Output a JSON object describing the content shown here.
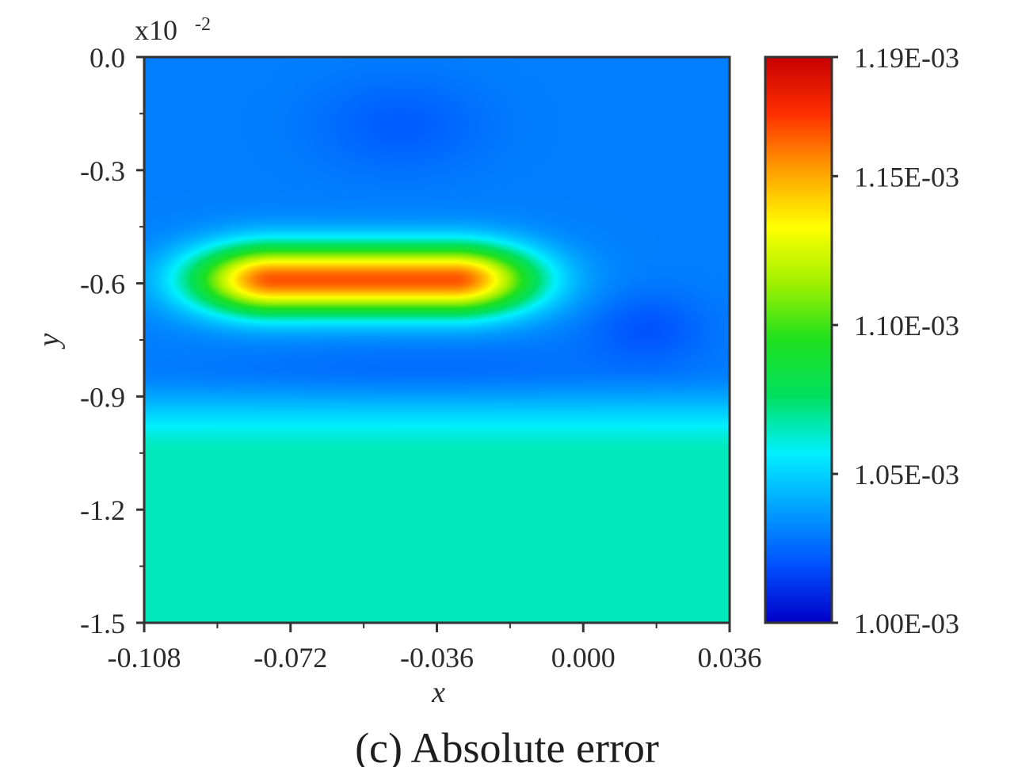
{
  "chart_data": {
    "type": "heatmap",
    "caption": "(c) Absolute error",
    "xlabel": "x",
    "ylabel": "y",
    "y_multiplier": "x10",
    "y_multiplier_exponent": "-2",
    "xlim": [
      -0.108,
      0.036
    ],
    "ylim": [
      -1.5,
      0.0
    ],
    "x_ticks": [
      "-0.108",
      "-0.072",
      "-0.036",
      "0.000",
      "0.036"
    ],
    "y_ticks": [
      "0.0",
      "-0.3",
      "-0.6",
      "-0.9",
      "-1.2",
      "-1.5"
    ],
    "colorbar": {
      "min": 0.001,
      "max": 0.00119,
      "tick_labels": [
        "1.19E-03",
        "1.15E-03",
        "1.10E-03",
        "1.05E-03",
        "1.00E-03"
      ],
      "tick_values": [
        0.00119,
        0.00115,
        0.0011,
        0.00105,
        0.001
      ],
      "colormap": [
        "#0000c8",
        "#0050ff",
        "#00a0ff",
        "#00f0ff",
        "#00e060",
        "#1ee01e",
        "#a0f000",
        "#ffff00",
        "#ffa000",
        "#ff3000",
        "#c80000"
      ]
    },
    "field": {
      "background_value": 0.00103,
      "bottom_band": {
        "y_range": [
          -1.5,
          -0.95
        ],
        "value": 0.001065
      },
      "blobs": [
        {
          "x": -0.054,
          "y": -0.59,
          "sx": 0.02,
          "sy": 0.09,
          "amp": 0.000135,
          "shape": "elongated"
        },
        {
          "x": -0.045,
          "y": -0.18,
          "sx": 0.02,
          "sy": 0.12,
          "amp": -8e-06
        },
        {
          "x": 0.016,
          "y": -0.72,
          "sx": 0.014,
          "sy": 0.09,
          "amp": -1e-05
        },
        {
          "x": -0.04,
          "y": -0.82,
          "sx": 0.05,
          "sy": 0.08,
          "amp": -4e-06
        }
      ]
    }
  }
}
